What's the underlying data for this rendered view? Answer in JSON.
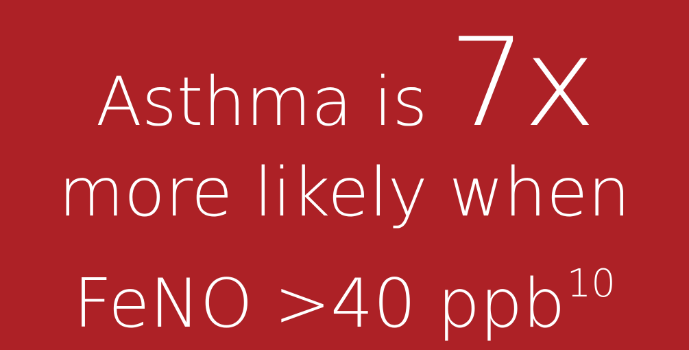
{
  "headline": {
    "part1": "Asthma is ",
    "highlight": "7x",
    "line2": "more likely when",
    "line3": "FeNO >40 ppb",
    "reference": "10"
  },
  "colors": {
    "background": "#ad2126",
    "text": "#ffffff"
  }
}
